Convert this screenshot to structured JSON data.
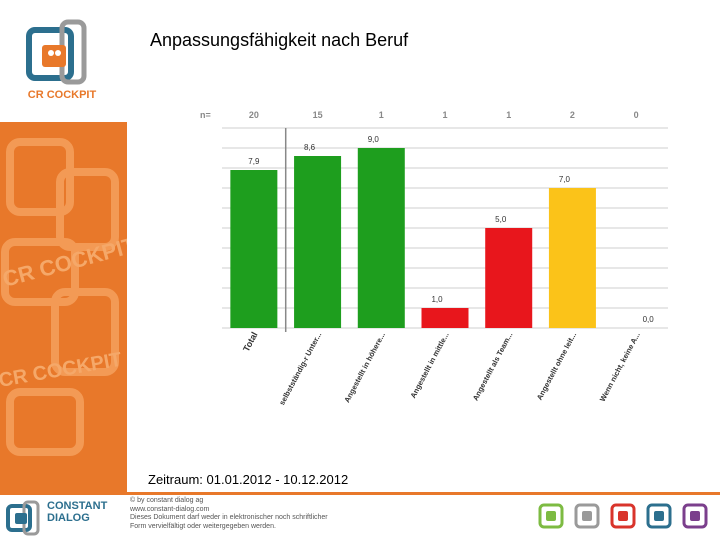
{
  "header": {
    "title": "Anpassungsfähigkeit nach Beruf"
  },
  "brand": {
    "logo_caption": "CR COCKPIT",
    "watermark_text": "CR COCKPIT"
  },
  "chart_data": {
    "type": "bar",
    "title": "Anpassungsfähigkeit nach Beruf",
    "n_label": "n=",
    "categories": [
      "Total",
      "selbstständig-r Unter...",
      "Angestellt in höhere...",
      "Angestellt in mittle...",
      "Angestellt als Team...",
      "Angestellt ohne leit...",
      "Wenn nicht, keine A..."
    ],
    "n_values": [
      "20",
      "15",
      "1",
      "1",
      "1",
      "2",
      "0"
    ],
    "values": [
      7.9,
      8.6,
      9.0,
      1.0,
      5.0,
      7.0,
      0.0
    ],
    "value_labels": [
      "7,9",
      "8,6",
      "9,0",
      "1,0",
      "5,0",
      "7,0",
      "0,0"
    ],
    "colors": [
      "#1e9e1e",
      "#1e9e1e",
      "#1e9e1e",
      "#e8161c",
      "#e8161c",
      "#fbc319",
      "#fbc319"
    ],
    "ylim": [
      0,
      10
    ],
    "grid": true,
    "xlabel": "",
    "ylabel": ""
  },
  "period": {
    "label": "Zeitraum: 01.01.2012 - 10.12.2012"
  },
  "footer": {
    "brand_line1": "CONSTANT",
    "brand_line2": "DIALOG",
    "note_lines": [
      "© by constant dialog ag",
      "www.constant-dialog.com",
      "Dieses Dokument darf weder in elektronischer noch schriftlicher",
      "Form vervielfältigt oder weitergegeben werden."
    ],
    "mini_logo_colors": [
      "#7dbb42",
      "#9a9a9a",
      "#d9342b",
      "#2c6f8e",
      "#7b3f8c"
    ]
  }
}
